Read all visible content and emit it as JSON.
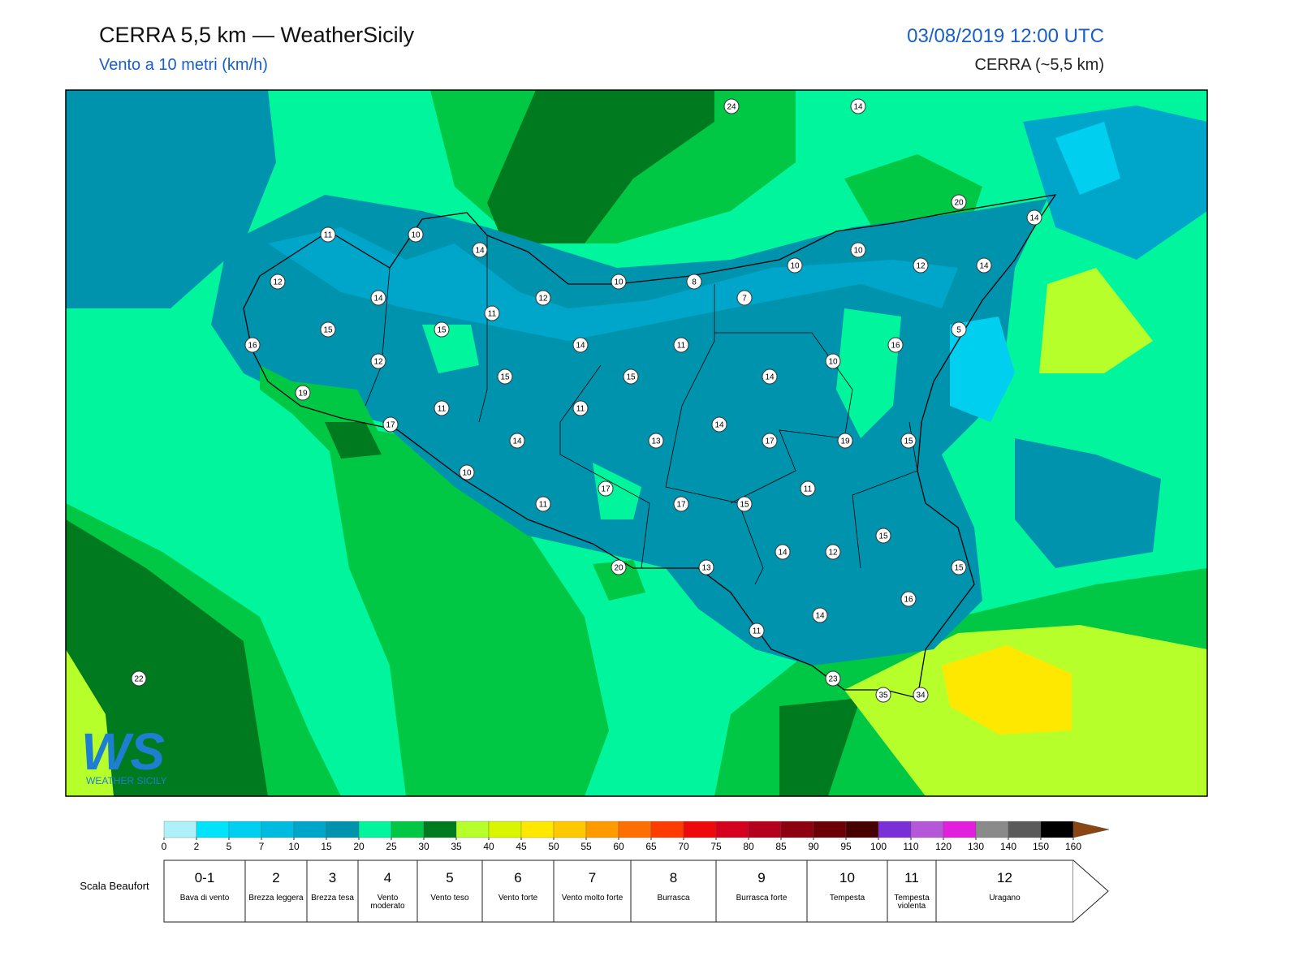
{
  "header": {
    "title": "CERRA 5,5 km — WeatherSicily",
    "subtitle": "Vento a 10 metri (km/h)",
    "datetime": "03/08/2019 12:00 UTC",
    "model": "CERRA (~5,5 km)"
  },
  "map": {
    "stations": [
      24,
      14,
      20,
      14,
      11,
      10,
      14,
      10,
      12,
      10,
      12,
      14,
      10,
      8,
      12,
      7,
      14,
      11,
      15,
      15,
      5,
      16,
      14,
      11,
      10,
      16,
      12,
      15,
      15,
      14,
      19,
      11,
      11,
      17,
      14,
      14,
      13,
      17,
      19,
      15,
      10,
      11,
      17,
      11,
      17,
      15,
      15,
      14,
      12,
      20,
      13,
      15,
      16,
      14,
      11,
      22,
      23,
      35,
      34
    ]
  },
  "logo": {
    "mark": "WS",
    "text": "WEATHER SICILY"
  },
  "colorbar": {
    "ticks": [
      0,
      2,
      5,
      7,
      10,
      15,
      20,
      25,
      30,
      35,
      40,
      45,
      50,
      55,
      60,
      65,
      70,
      75,
      80,
      85,
      90,
      95,
      100,
      110,
      120,
      130,
      140,
      150,
      160
    ],
    "colors": [
      "#aef1f9",
      "#00e3fb",
      "#00cff0",
      "#00bbe0",
      "#00a6c9",
      "#0093ad",
      "#00f59c",
      "#00c844",
      "#007a1e",
      "#b6ff2a",
      "#d9f500",
      "#ffe800",
      "#ffc800",
      "#ff9a00",
      "#ff6e00",
      "#ff3c00",
      "#ee0a0a",
      "#d4001e",
      "#b4001c",
      "#8c0010",
      "#6a0006",
      "#470000",
      "#7b2fd6",
      "#b656d8",
      "#e21fdc",
      "#8a8a8a",
      "#5a5a5a",
      "#000000",
      "#8b4513",
      "#cd853f"
    ]
  },
  "beaufort": {
    "label": "Scala Beaufort",
    "levels": [
      {
        "number": "0-1",
        "description": "Bava di vento"
      },
      {
        "number": "2",
        "description": "Brezza leggera"
      },
      {
        "number": "3",
        "description": "Brezza tesa"
      },
      {
        "number": "4",
        "description": "Vento moderato"
      },
      {
        "number": "5",
        "description": "Vento teso"
      },
      {
        "number": "6",
        "description": "Vento forte"
      },
      {
        "number": "7",
        "description": "Vento molto forte"
      },
      {
        "number": "8",
        "description": "Burrasca"
      },
      {
        "number": "9",
        "description": "Burrasca forte"
      },
      {
        "number": "10",
        "description": "Tempesta"
      },
      {
        "number": "11",
        "description": "Tempesta violenta"
      },
      {
        "number": "12",
        "description": "Uragano"
      }
    ]
  }
}
